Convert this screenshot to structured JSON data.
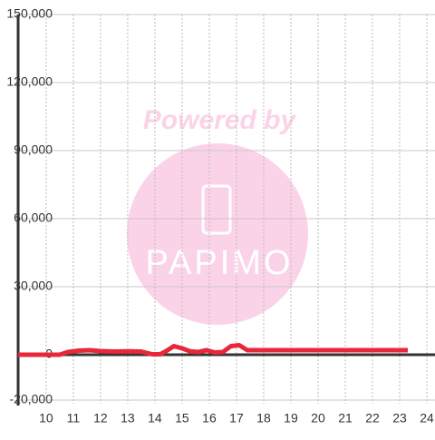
{
  "chart_data": {
    "type": "line",
    "watermark": {
      "text": "Powered by",
      "logo": "PAPIMO"
    },
    "x": [
      8.97,
      10.5,
      10.8,
      11.2,
      11.6,
      12.0,
      12.5,
      13.0,
      13.5,
      13.9,
      14.2,
      14.4,
      14.7,
      15.0,
      15.3,
      15.6,
      15.9,
      16.2,
      16.5,
      16.8,
      17.1,
      17.4,
      18.0,
      19.0,
      20.0,
      21.0,
      22.0,
      23.3
    ],
    "series": [
      {
        "name": "value",
        "color": "#e8283a",
        "values": [
          0,
          0,
          1200,
          1800,
          2000,
          1600,
          1400,
          1500,
          1400,
          200,
          200,
          1500,
          3800,
          2800,
          1500,
          1200,
          2000,
          1000,
          1200,
          3800,
          4200,
          2000,
          2000,
          2000,
          2000,
          2000,
          2000,
          2000
        ]
      }
    ],
    "xlim": [
      8.97,
      24.3
    ],
    "xticks": [
      10,
      11,
      12,
      13,
      14,
      15,
      16,
      17,
      18,
      19,
      20,
      21,
      22,
      23,
      24
    ],
    "ylim": [
      -20000,
      150000
    ],
    "yticks": [
      {
        "value": -20000,
        "label": "-20,000"
      },
      0,
      {
        "value": 30000,
        "label": "30,000"
      },
      {
        "value": 60000,
        "label": "60,000"
      },
      {
        "value": 90000,
        "label": "90,000"
      },
      {
        "value": 120000,
        "label": "120,000"
      },
      {
        "value": 150000,
        "label": "150,000"
      }
    ],
    "grid": true
  }
}
